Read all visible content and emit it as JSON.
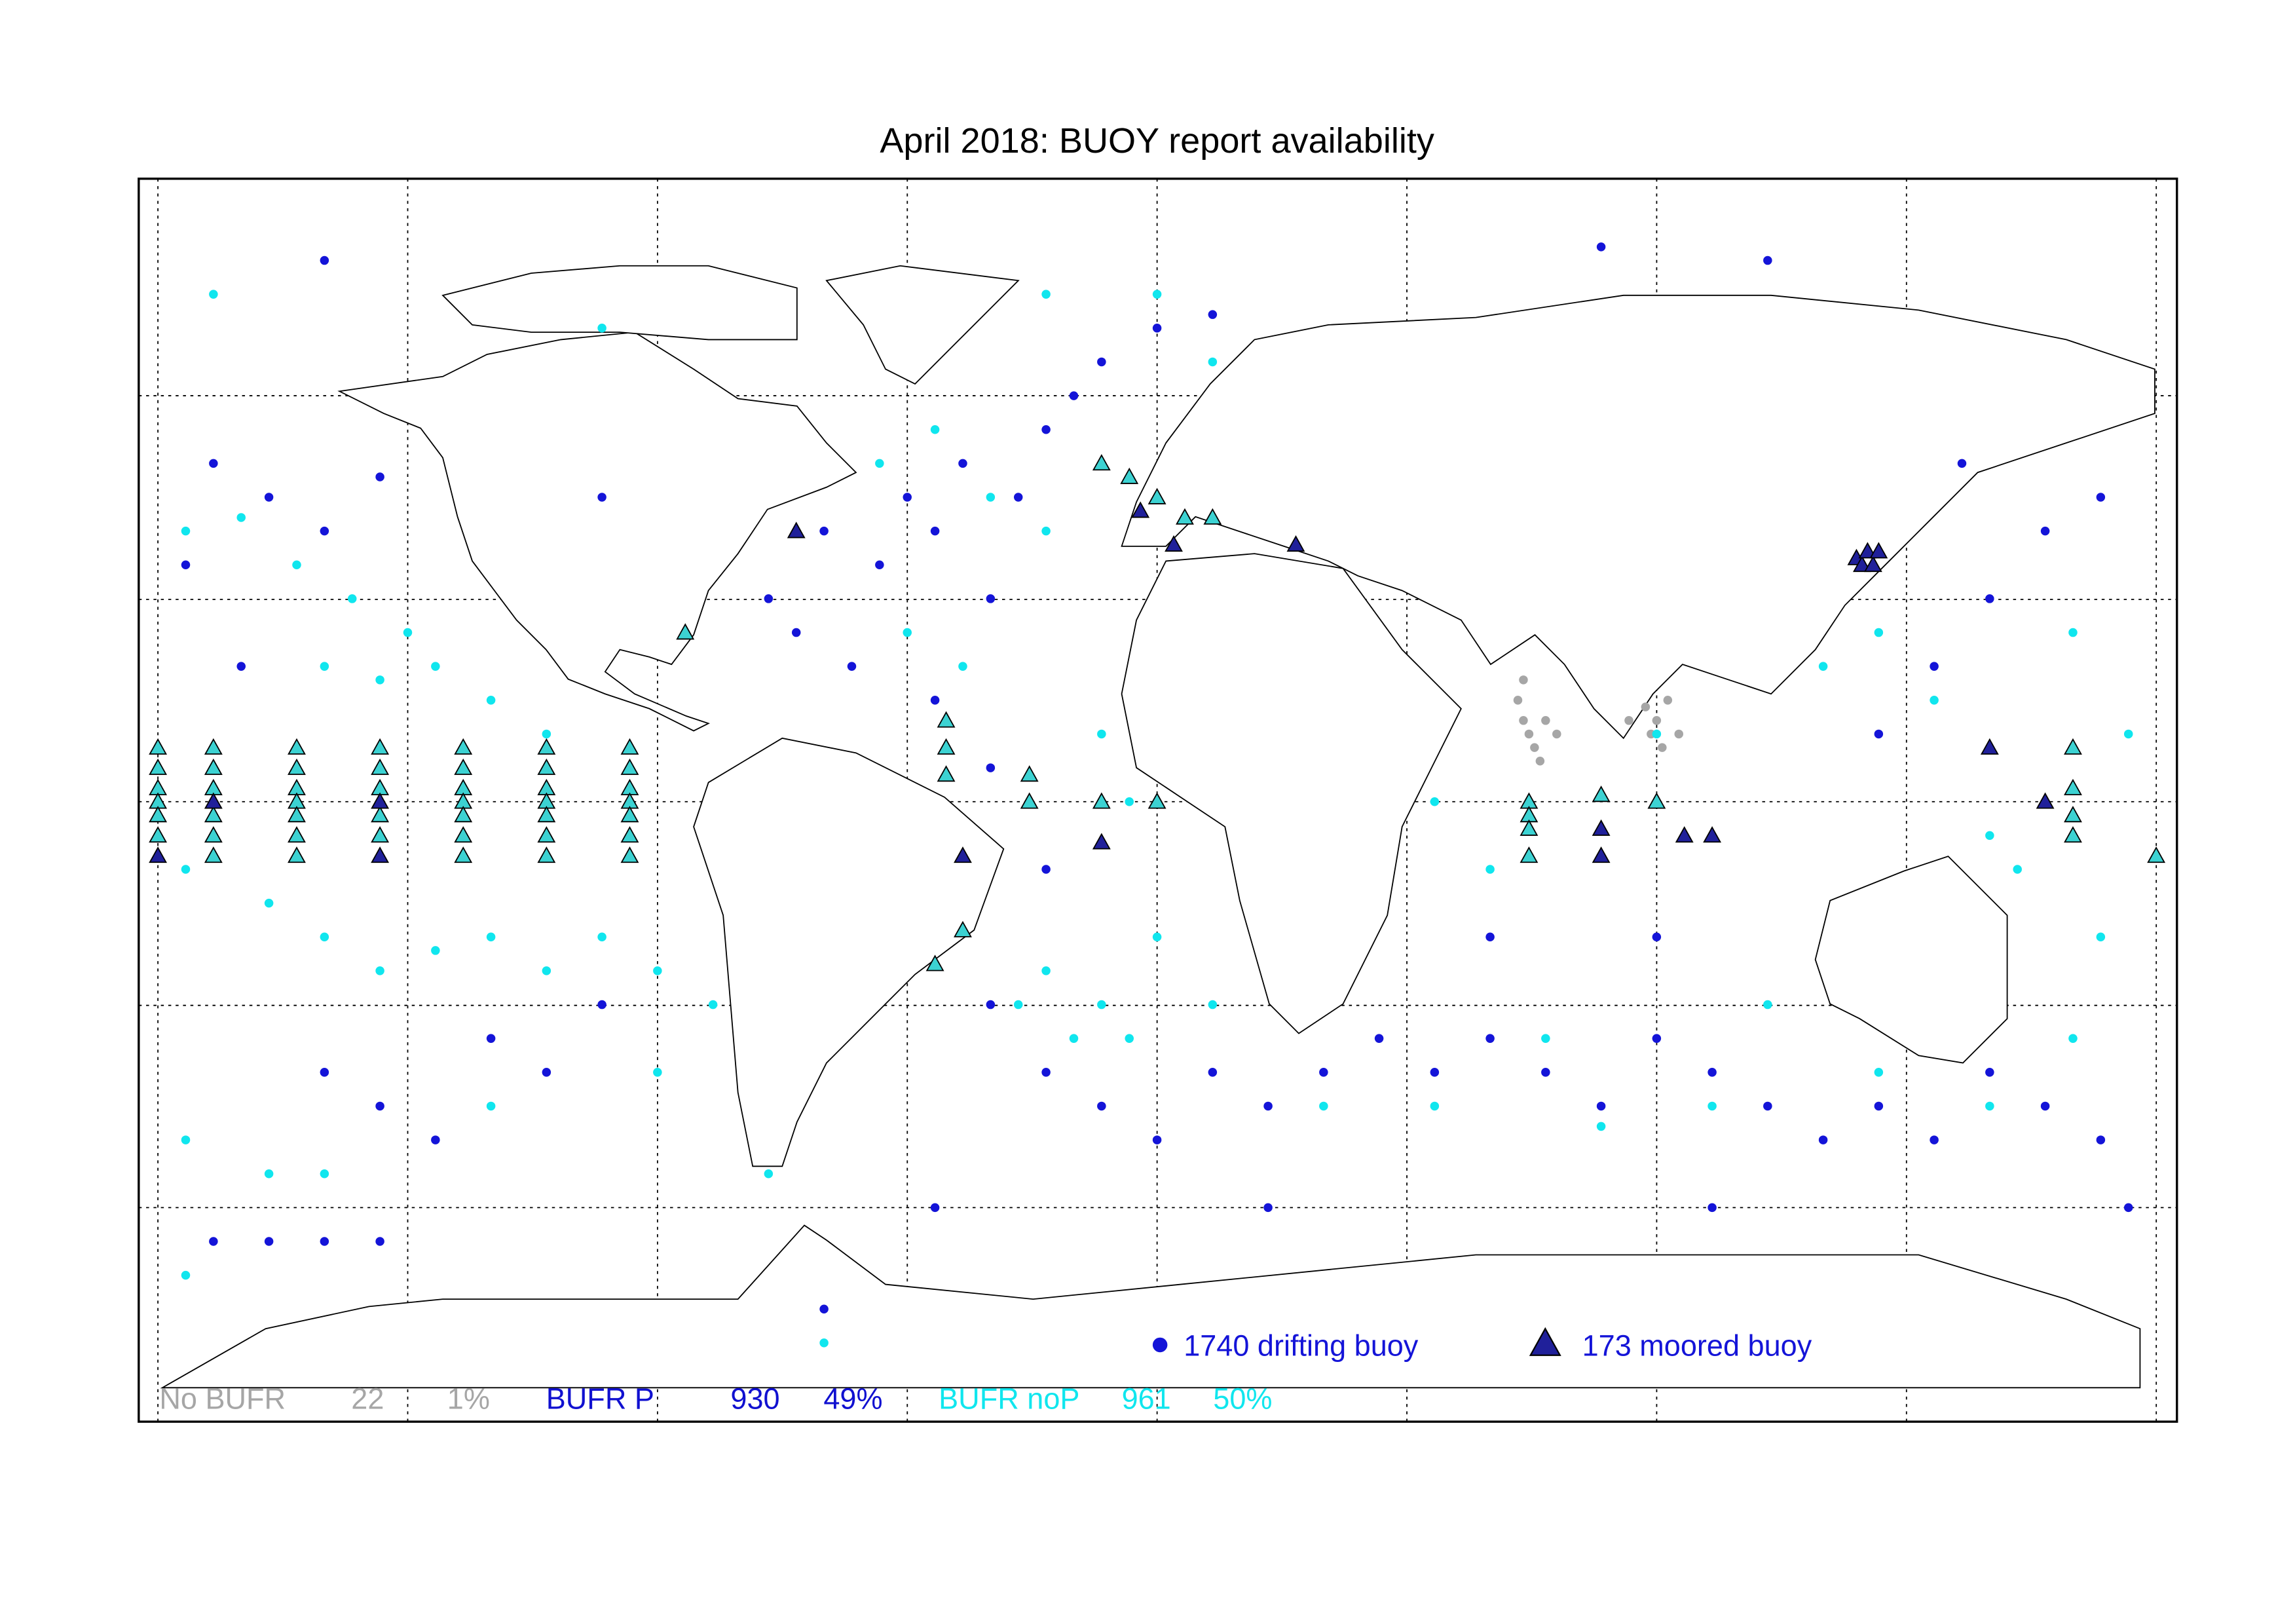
{
  "title": "April 2018: BUOY report availability",
  "legend": [
    {
      "label": "1740 drifting buoy",
      "color": "#1414d8"
    },
    {
      "label": "173 moored buoy",
      "color": "#20209a"
    }
  ],
  "statistics": [
    {
      "label": "No BUFR",
      "count": 22,
      "percent": "1%",
      "color": "#a6a6a6"
    },
    {
      "label": "BUFR P",
      "count": 930,
      "percent": "49%",
      "color": "#1010d0"
    },
    {
      "label": "BUFR noP",
      "count": 961,
      "percent": "50%",
      "color": "#10e6ee"
    }
  ],
  "buoys": {
    "drifting_no_bufr": {
      "color": "#a6a6a6",
      "positions": [
        [
          65,
          15
        ],
        [
          66,
          12
        ],
        [
          67,
          10
        ],
        [
          68,
          8
        ],
        [
          70,
          12
        ],
        [
          72,
          10
        ],
        [
          88,
          14
        ],
        [
          90,
          12
        ],
        [
          92,
          15
        ],
        [
          89,
          10
        ],
        [
          94,
          10
        ],
        [
          85,
          12
        ],
        [
          66,
          18
        ],
        [
          69,
          6
        ],
        [
          91,
          8
        ]
      ]
    },
    "drifting_p": {
      "color": "#1414d8",
      "positions": [
        [
          -170,
          50
        ],
        [
          -160,
          45
        ],
        [
          -150,
          40
        ],
        [
          -140,
          48
        ],
        [
          -175,
          35
        ],
        [
          -165,
          20
        ],
        [
          -150,
          -40
        ],
        [
          -140,
          -45
        ],
        [
          -120,
          -35
        ],
        [
          -110,
          -40
        ],
        [
          -100,
          -30
        ],
        [
          -130,
          -50
        ],
        [
          -170,
          -65
        ],
        [
          -160,
          -65
        ],
        [
          -150,
          -65
        ],
        [
          -140,
          -65
        ],
        [
          -60,
          40
        ],
        [
          -50,
          35
        ],
        [
          -45,
          45
        ],
        [
          -40,
          40
        ],
        [
          -35,
          50
        ],
        [
          -30,
          30
        ],
        [
          -25,
          45
        ],
        [
          -20,
          55
        ],
        [
          -15,
          60
        ],
        [
          -10,
          65
        ],
        [
          0,
          70
        ],
        [
          10,
          72
        ],
        [
          -70,
          30
        ],
        [
          -65,
          25
        ],
        [
          -55,
          20
        ],
        [
          -40,
          15
        ],
        [
          -30,
          5
        ],
        [
          -20,
          -10
        ],
        [
          -30,
          -30
        ],
        [
          -20,
          -40
        ],
        [
          -10,
          -45
        ],
        [
          0,
          -50
        ],
        [
          10,
          -40
        ],
        [
          20,
          -45
        ],
        [
          30,
          -40
        ],
        [
          40,
          -35
        ],
        [
          50,
          -40
        ],
        [
          60,
          -35
        ],
        [
          70,
          -40
        ],
        [
          80,
          -45
        ],
        [
          90,
          -35
        ],
        [
          100,
          -40
        ],
        [
          110,
          -45
        ],
        [
          120,
          -50
        ],
        [
          130,
          -45
        ],
        [
          140,
          -50
        ],
        [
          150,
          -40
        ],
        [
          160,
          -45
        ],
        [
          170,
          -50
        ],
        [
          175,
          -60
        ],
        [
          150,
          30
        ],
        [
          160,
          40
        ],
        [
          170,
          45
        ],
        [
          140,
          20
        ],
        [
          130,
          10
        ],
        [
          90,
          -20
        ],
        [
          60,
          -20
        ],
        [
          -100,
          45
        ],
        [
          -40,
          -60
        ],
        [
          -60,
          -75
        ],
        [
          20,
          -60
        ],
        [
          100,
          -60
        ],
        [
          145,
          50
        ],
        [
          -150,
          80
        ],
        [
          80,
          82
        ],
        [
          110,
          80
        ]
      ]
    },
    "drifting_nop": {
      "color": "#10e6ee",
      "positions": [
        [
          -175,
          40
        ],
        [
          -165,
          42
        ],
        [
          -155,
          35
        ],
        [
          -145,
          30
        ],
        [
          -135,
          25
        ],
        [
          -150,
          20
        ],
        [
          -140,
          18
        ],
        [
          -130,
          20
        ],
        [
          -120,
          15
        ],
        [
          -110,
          10
        ],
        [
          -175,
          -10
        ],
        [
          -160,
          -15
        ],
        [
          -150,
          -20
        ],
        [
          -140,
          -25
        ],
        [
          -130,
          -22
        ],
        [
          -120,
          -20
        ],
        [
          -110,
          -25
        ],
        [
          -100,
          -20
        ],
        [
          -90,
          -25
        ],
        [
          -175,
          -50
        ],
        [
          -160,
          -55
        ],
        [
          -150,
          -55
        ],
        [
          -175,
          -70
        ],
        [
          -80,
          -30
        ],
        [
          -50,
          50
        ],
        [
          -40,
          55
        ],
        [
          -30,
          45
        ],
        [
          -20,
          40
        ],
        [
          -45,
          25
        ],
        [
          -35,
          20
        ],
        [
          -25,
          -30
        ],
        [
          -20,
          -25
        ],
        [
          -15,
          -35
        ],
        [
          -10,
          -30
        ],
        [
          -5,
          -35
        ],
        [
          10,
          -30
        ],
        [
          30,
          -45
        ],
        [
          50,
          -45
        ],
        [
          70,
          -35
        ],
        [
          80,
          -48
        ],
        [
          100,
          -45
        ],
        [
          110,
          -30
        ],
        [
          130,
          -40
        ],
        [
          150,
          -45
        ],
        [
          165,
          -35
        ],
        [
          170,
          -20
        ],
        [
          160,
          0
        ],
        [
          150,
          -5
        ],
        [
          140,
          15
        ],
        [
          120,
          20
        ],
        [
          90,
          10
        ],
        [
          60,
          -10
        ],
        [
          50,
          0
        ],
        [
          -10,
          10
        ],
        [
          -5,
          0
        ],
        [
          0,
          75
        ],
        [
          -20,
          75
        ],
        [
          10,
          65
        ],
        [
          -170,
          75
        ],
        [
          -100,
          70
        ],
        [
          -60,
          -80
        ],
        [
          155,
          -10
        ],
        [
          175,
          10
        ],
        [
          165,
          25
        ],
        [
          130,
          25
        ],
        [
          -120,
          -45
        ],
        [
          -90,
          -40
        ],
        [
          -70,
          -55
        ],
        [
          0,
          -20
        ]
      ]
    },
    "moored_nop": {
      "color": "#3cd2d2",
      "positions": [
        [
          -180,
          8
        ],
        [
          -180,
          5
        ],
        [
          -180,
          2
        ],
        [
          -180,
          0
        ],
        [
          -180,
          -2
        ],
        [
          -180,
          -5
        ],
        [
          -170,
          8
        ],
        [
          -170,
          5
        ],
        [
          -170,
          2
        ],
        [
          -170,
          -2
        ],
        [
          -170,
          -5
        ],
        [
          -170,
          -8
        ],
        [
          -155,
          8
        ],
        [
          -155,
          5
        ],
        [
          -155,
          2
        ],
        [
          -155,
          0
        ],
        [
          -155,
          -2
        ],
        [
          -155,
          -5
        ],
        [
          -155,
          -8
        ],
        [
          -140,
          8
        ],
        [
          -140,
          5
        ],
        [
          -140,
          2
        ],
        [
          -140,
          -2
        ],
        [
          -140,
          -5
        ],
        [
          -125,
          8
        ],
        [
          -125,
          5
        ],
        [
          -125,
          2
        ],
        [
          -125,
          0
        ],
        [
          -125,
          -2
        ],
        [
          -125,
          -5
        ],
        [
          -125,
          -8
        ],
        [
          -110,
          8
        ],
        [
          -110,
          5
        ],
        [
          -110,
          2
        ],
        [
          -110,
          0
        ],
        [
          -110,
          -2
        ],
        [
          -110,
          -5
        ],
        [
          -110,
          -8
        ],
        [
          -95,
          8
        ],
        [
          -95,
          5
        ],
        [
          -95,
          2
        ],
        [
          -95,
          0
        ],
        [
          -95,
          -2
        ],
        [
          -95,
          -5
        ],
        [
          -95,
          -8
        ],
        [
          -38,
          12
        ],
        [
          -38,
          8
        ],
        [
          -38,
          4
        ],
        [
          -23,
          0
        ],
        [
          -23,
          4
        ],
        [
          -10,
          0
        ],
        [
          0,
          0
        ],
        [
          -35,
          -19
        ],
        [
          -40,
          -24
        ],
        [
          67,
          0
        ],
        [
          67,
          -2
        ],
        [
          67,
          -4
        ],
        [
          67,
          -8
        ],
        [
          80,
          1
        ],
        [
          90,
          0
        ],
        [
          -10,
          50
        ],
        [
          -5,
          48
        ],
        [
          0,
          45
        ],
        [
          5,
          42
        ],
        [
          10,
          42
        ],
        [
          -85,
          25
        ],
        [
          165,
          8
        ],
        [
          165,
          2
        ],
        [
          165,
          -2
        ],
        [
          165,
          -5
        ],
        [
          180,
          -8
        ]
      ]
    },
    "moored_p": {
      "color": "#20209a",
      "positions": [
        [
          -180,
          -8
        ],
        [
          -170,
          0
        ],
        [
          -140,
          0
        ],
        [
          -140,
          -8
        ],
        [
          -10,
          -6
        ],
        [
          -35,
          -8
        ],
        [
          80,
          -4
        ],
        [
          80,
          -8
        ],
        [
          95,
          -5
        ],
        [
          100,
          -5
        ],
        [
          -3,
          43
        ],
        [
          3,
          38
        ],
        [
          25,
          38
        ],
        [
          -65,
          40
        ],
        [
          126,
          36
        ],
        [
          127,
          35
        ],
        [
          128,
          37
        ],
        [
          129,
          35
        ],
        [
          130,
          37
        ],
        [
          150,
          8
        ],
        [
          160,
          0
        ]
      ]
    }
  }
}
